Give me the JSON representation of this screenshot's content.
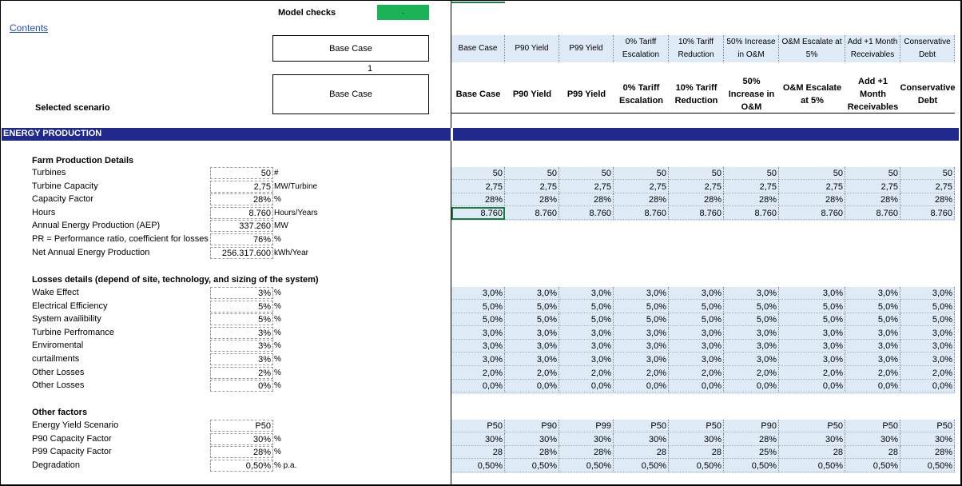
{
  "contents_link": "Contents",
  "model_checks": {
    "label": "Model checks",
    "value": "-"
  },
  "scenario_select": {
    "label": "Base Case",
    "index": "1"
  },
  "selected_scenario": {
    "label": "Selected scenario",
    "value": "Base Case"
  },
  "scenario_headers_raw": [
    "Base Case",
    "P90 Yield",
    "P99 Yield",
    "0% Tariff Escalation",
    "10% Tariff Reduction",
    "50% Increase in O&M",
    "O&M Escalate at 5%",
    "Add +1 Month Receivables",
    "Conservative Debt"
  ],
  "scenario_headers": [
    "Base Case",
    "P90 Yield",
    "P99 Yield",
    "0% Tariff Escalation",
    "10% Tariff Reduction",
    "50% Increase in O&M",
    "O&M Escalate at 5%",
    "Add +1 Month Receivables",
    "Conservative Debt"
  ],
  "section_title": "ENERGY PRODUCTION",
  "farm": {
    "title": "Farm Production Details",
    "rows": [
      {
        "label": "Turbines",
        "value": "50",
        "unit": "#",
        "scen": [
          "50",
          "50",
          "50",
          "50",
          "50",
          "50",
          "50",
          "50",
          "50"
        ]
      },
      {
        "label": "Turbine Capacity",
        "value": "2,75",
        "unit": "MW/Turbine",
        "scen": [
          "2,75",
          "2,75",
          "2,75",
          "2,75",
          "2,75",
          "2,75",
          "2,75",
          "2,75",
          "2,75"
        ]
      },
      {
        "label": "Capacity Factor",
        "value": "28%",
        "unit": "%",
        "scen": [
          "28%",
          "28%",
          "28%",
          "28%",
          "28%",
          "28%",
          "28%",
          "28%",
          "28%"
        ]
      },
      {
        "label": "Hours",
        "value": "8.760",
        "unit": "Hours/Years",
        "scen": [
          "8.760",
          "8.760",
          "8.760",
          "8.760",
          "8.760",
          "8.760",
          "8.760",
          "8.760",
          "8.760"
        ]
      },
      {
        "label": "Annual Energy Production (AEP)",
        "value": "337.260",
        "unit": "MW"
      },
      {
        "label": "PR = Performance ratio, coefficient for losses",
        "value": "76%",
        "unit": "%"
      },
      {
        "label": "Net Annual Energy Production",
        "value": "256.317.600",
        "unit": "kWh/Year"
      }
    ]
  },
  "losses": {
    "title": "Losses details (depend of site, technology, and sizing of the system)",
    "rows": [
      {
        "label": "Wake Effect",
        "value": "3%",
        "unit": "%",
        "scen": [
          "3,0%",
          "3,0%",
          "3,0%",
          "3,0%",
          "3,0%",
          "3,0%",
          "3,0%",
          "3,0%",
          "3,0%"
        ]
      },
      {
        "label": "Electrical Efficiency",
        "value": "5%",
        "unit": "%",
        "scen": [
          "5,0%",
          "5,0%",
          "5,0%",
          "5,0%",
          "5,0%",
          "5,0%",
          "5,0%",
          "5,0%",
          "5,0%"
        ]
      },
      {
        "label": "System availibility",
        "value": "5%",
        "unit": "%",
        "scen": [
          "5,0%",
          "5,0%",
          "5,0%",
          "5,0%",
          "5,0%",
          "5,0%",
          "5,0%",
          "5,0%",
          "5,0%"
        ]
      },
      {
        "label": "Turbine Perfromance",
        "value": "3%",
        "unit": "%",
        "scen": [
          "3,0%",
          "3,0%",
          "3,0%",
          "3,0%",
          "3,0%",
          "3,0%",
          "3,0%",
          "3,0%",
          "3,0%"
        ]
      },
      {
        "label": "Enviromental",
        "value": "3%",
        "unit": "%",
        "scen": [
          "3,0%",
          "3,0%",
          "3,0%",
          "3,0%",
          "3,0%",
          "3,0%",
          "3,0%",
          "3,0%",
          "3,0%"
        ]
      },
      {
        "label": "curtailments",
        "value": "3%",
        "unit": "%",
        "scen": [
          "3,0%",
          "3,0%",
          "3,0%",
          "3,0%",
          "3,0%",
          "3,0%",
          "3,0%",
          "3,0%",
          "3,0%"
        ]
      },
      {
        "label": "Other Losses",
        "value": "2%",
        "unit": "%",
        "scen": [
          "2,0%",
          "2,0%",
          "2,0%",
          "2,0%",
          "2,0%",
          "2,0%",
          "2,0%",
          "2,0%",
          "2,0%"
        ]
      },
      {
        "label": "Other Losses",
        "value": "0%",
        "unit": "%",
        "scen": [
          "0,0%",
          "0,0%",
          "0,0%",
          "0,0%",
          "0,0%",
          "0,0%",
          "0,0%",
          "0,0%",
          "0,0%"
        ]
      }
    ]
  },
  "other": {
    "title": "Other factors",
    "rows": [
      {
        "label": "Energy Yield Scenario",
        "value": "P50",
        "unit": "",
        "scen": [
          "P50",
          "P90",
          "P99",
          "P50",
          "P50",
          "P90",
          "P50",
          "P50",
          "P50"
        ]
      },
      {
        "label": "P90 Capacity Factor",
        "value": "30%",
        "unit": "%",
        "scen": [
          "30%",
          "30%",
          "30%",
          "30%",
          "30%",
          "28%",
          "30%",
          "30%",
          "30%"
        ]
      },
      {
        "label": "P99 Capacity Factor",
        "value": "28%",
        "unit": "%",
        "scen": [
          "28",
          "28%",
          "28%",
          "28",
          "28",
          "25%",
          "28",
          "28",
          "28%"
        ]
      },
      {
        "label": "Degradation",
        "value": "0,50%",
        "unit": "% p.a.",
        "scen": [
          "0,50%",
          "0,50%",
          "0,50%",
          "0,50%",
          "0,50%",
          "0,50%",
          "0,50%",
          "0,50%",
          "0,50%"
        ]
      }
    ]
  },
  "colors": {
    "section_bg": "#1f2a8c",
    "scenario_bg": "#deeaf6",
    "check_ok": "#1bb358",
    "link": "#1f4fb8"
  }
}
